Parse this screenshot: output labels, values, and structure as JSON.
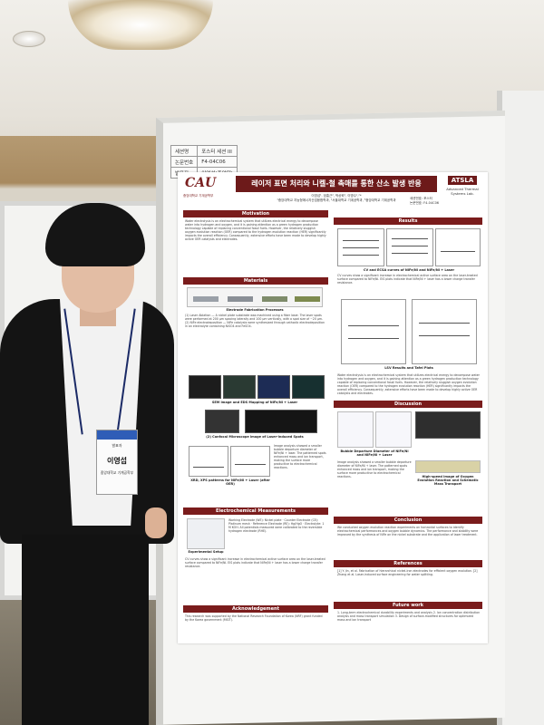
{
  "poster": {
    "univ_logo_mark": "CAU",
    "univ_logo_text": "중앙대학교 기계공학부",
    "title": "레이저 표면 처리와 니켈-철 촉매를 통한 산소 발생 반응",
    "authors": "이영섭¹, 엄홍근², 박상혁¹, 이명수¹,²*",
    "affiliations": "¹중앙대학교 지능형에너지산업융합학과, ²서울대학교 기계공학과, ³중앙대학교 기계공학과",
    "lab_logo": "ATSLA",
    "lab_name": "Advanced Thermal Systems Lab.",
    "session_line1": "세션번호: 포스터",
    "session_line2": "논문번호: F4-04C06",
    "sections": {
      "motivation": "Motivation",
      "materials": "Materials",
      "electrochem": "Electrochemical Measurements",
      "acknowledgement": "Acknowledgement",
      "results": "Results",
      "discussion": "Discussion",
      "conclusion": "Conclusion",
      "references": "References",
      "future_work": "Future work"
    },
    "captions": {
      "fabrication": "Electrode Fabrication Processes",
      "sem_edx": "SEM image and EDS Mapping of NiFe/Ni + Laser",
      "cross_section": "(2) Confocal Microscope image of Laser-induced Spots",
      "xrd": "XRD, XPS patterns for NiFe/Ni + Laser (after OER)",
      "setup": "Experimental Setup",
      "cv_ecsa": "CV and ECSA curves of NiFe/Ni and NiFe/Ni + Laser",
      "lsv": "LSV Results and Tafel Plots",
      "bubble_diagram": "Bubble Departure Diameter of NiFe/Ni and NiFe/Ni + Laser",
      "highspeed": "High-speed image of Oxygen Evolution Reaction and Schematic Mass Transport"
    },
    "sample_text": {
      "motivation": "Water electrolysis is an electrochemical system that utilizes electrical energy to decompose water into hydrogen and oxygen, and it is gaining attention as a green hydrogen production technology capable of replacing conventional fossil fuels. However, the relatively sluggish oxygen evolution reaction (OER) compared to the hydrogen evolution reaction (HER) significantly impacts the overall efficiency. Consequently, extensive efforts have been made to develop highly active OER catalysts and electrodes.",
      "materials": "(1) Laser Ablation — A nickel plate substrate was machined using a fiber laser. The laser spots were performed at 200 μm spacing laterally and 100 μm vertically, with a spot size of ~20 μm. (2) NiFe electrodeposition — NiFe catalysts were synthesized through cathodic electrodeposition in an electrolyte containing NiSO4 and FeSO4.",
      "electrochem": "Working Electrode (WE): Nickel plate · Counter Electrode (CE): Platinum mesh · Reference Electrode (RE): Hg/HgO · Electrolyte: 1 M KOH. All potentials measured were calibrated to the reversible hydrogen electrode (RHE).",
      "acknowledgement": "This research was supported by the National Research Foundation of Korea (NRF) grant funded by the Korea government (MSIT).",
      "results": "CV curves show a significant increase in electrochemical active surface area on the laser-treated surface compared to NiFe/Ni. EIS plots indicate that NiFe/Ni + laser has a lower charge transfer resistance.",
      "discussion": "Image analysis showed a smaller bubble departure diameter of NiFe/Ni + laser. The patterned spots enhanced mass and ion transport, making the surface more productive to electrochemical reactions.",
      "conclusion": "We conducted oxygen evolution reaction experiments on horizontal surfaces to identify electrochemical performances and oxygen bubble dynamics. The performance and stability were improved by the synthesis of NiFe on the nickel substrate and the application of laser treatment.",
      "references": "[1] Y. Jin, et al. Fabrication of hierarchical nickel-iron electrodes for efficient oxygen evolution. [2] Zhang et al. Laser-induced surface engineering for water splitting.",
      "future_work": "1. Long-term electrochemical durability experiments and analysis 2. Ion concentration distribution analysis and mass transport simulation 3. Design of surface-modified structures for optimized mass and ion transport"
    }
  },
  "board_info": {
    "rows": [
      {
        "key": "세션명",
        "val": "포스터 세션 III"
      },
      {
        "key": "논문번호",
        "val": "F4-04C06"
      },
      {
        "key": "발표자",
        "val": "이영섭(중앙대)"
      }
    ]
  },
  "badge": {
    "type": "발표자",
    "name": "이영섭",
    "affiliation": "중앙대학교 기계공학부"
  }
}
